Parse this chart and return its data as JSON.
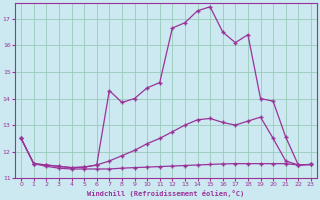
{
  "xlabel": "Windchill (Refroidissement éolien,°C)",
  "x": [
    0,
    1,
    2,
    3,
    4,
    5,
    6,
    7,
    8,
    9,
    10,
    11,
    12,
    13,
    14,
    15,
    16,
    17,
    18,
    19,
    20,
    21,
    22,
    23
  ],
  "line1": [
    12.5,
    11.55,
    11.45,
    11.38,
    11.35,
    11.35,
    11.35,
    11.35,
    11.38,
    11.4,
    11.42,
    11.44,
    11.46,
    11.48,
    11.5,
    11.52,
    11.54,
    11.55,
    11.55,
    11.55,
    11.55,
    11.55,
    11.5,
    11.52
  ],
  "line2": [
    12.5,
    11.55,
    11.5,
    11.45,
    11.4,
    11.42,
    11.5,
    11.65,
    11.85,
    12.05,
    12.3,
    12.5,
    12.75,
    13.0,
    13.2,
    13.25,
    13.1,
    13.0,
    13.15,
    13.3,
    12.5,
    11.65,
    11.5,
    11.52
  ],
  "line3": [
    12.5,
    11.55,
    11.5,
    11.45,
    11.4,
    11.42,
    11.5,
    14.3,
    13.85,
    14.0,
    14.4,
    14.6,
    16.65,
    16.85,
    17.3,
    17.45,
    16.5,
    16.1,
    16.4,
    14.0,
    13.9,
    12.55,
    11.5,
    11.52
  ],
  "bg_color": "#cce8f0",
  "grid_color": "#99ccbb",
  "line_color": "#993399",
  "marker": "+",
  "ylim": [
    11,
    17.6
  ],
  "xlim": [
    -0.5,
    23.5
  ],
  "yticks": [
    11,
    12,
    13,
    14,
    15,
    16,
    17
  ],
  "xticks": [
    0,
    1,
    2,
    3,
    4,
    5,
    6,
    7,
    8,
    9,
    10,
    11,
    12,
    13,
    14,
    15,
    16,
    17,
    18,
    19,
    20,
    21,
    22,
    23
  ]
}
